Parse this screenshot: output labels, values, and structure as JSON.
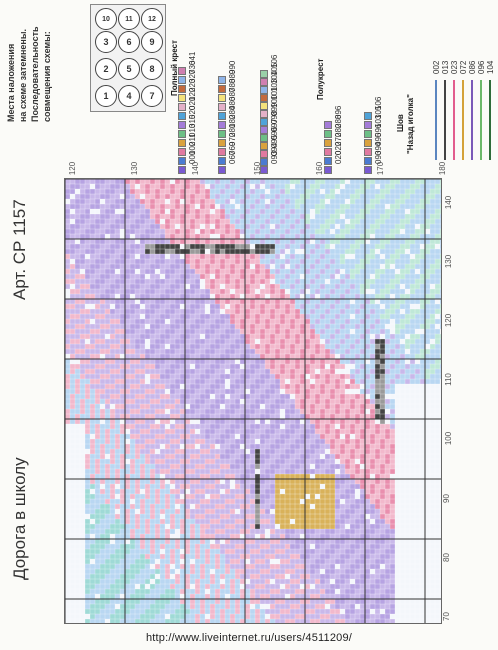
{
  "title": "Дорога в школу",
  "article": "Арт. СР 1157",
  "overlay": {
    "heading_lines": [
      "Места наложения",
      "на схеме затемнены.",
      "Последовательность",
      "совмещения схемы:"
    ],
    "numbers": [
      "1",
      "2",
      "3",
      "4",
      "5",
      "6",
      "7",
      "8",
      "9",
      "10",
      "11",
      "12"
    ]
  },
  "legend": {
    "full_cross_label": "Полный крест",
    "half_cross_label": "Полукрест",
    "seam_label": "Шов",
    "backstitch_label": "\"Назад иголка\"",
    "full_cross_col1": [
      "001",
      "002",
      "011",
      "013",
      "015",
      "020",
      "021",
      "022",
      "023",
      "027",
      "036",
      "041"
    ],
    "full_cross_col2": [
      "067",
      "069",
      "072",
      "081",
      "082",
      "084",
      "086",
      "087",
      "088",
      "089",
      "090"
    ],
    "full_cross_col3": [
      "093",
      "094",
      "095",
      "096",
      "097",
      "098",
      "099",
      "100",
      "101",
      "103",
      "104",
      "105",
      "106"
    ],
    "half_cross_col1": [
      "020",
      "022",
      "072",
      "082",
      "088",
      "096"
    ],
    "half_cross_col2": [
      "093",
      "094",
      "095",
      "096",
      "103",
      "105",
      "106"
    ],
    "seam_codes": [
      "002",
      "013",
      "023",
      "072",
      "086",
      "096",
      "104"
    ],
    "colors": {
      "line_002": "#5b86c0",
      "line_013": "#444444",
      "line_023": "#e25d8e",
      "line_072": "#d4a23a",
      "line_086": "#7b5ab8",
      "line_096": "#6cb86a",
      "line_104": "#2f6c3a"
    }
  },
  "x_ticks": [
    "70",
    "80",
    "90",
    "100",
    "110",
    "120",
    "130",
    "140"
  ],
  "y_ticks": [
    "120",
    "130",
    "140",
    "150",
    "160",
    "170",
    "180"
  ],
  "url": "http://www.liveinternet.ru/users/4511209/"
}
